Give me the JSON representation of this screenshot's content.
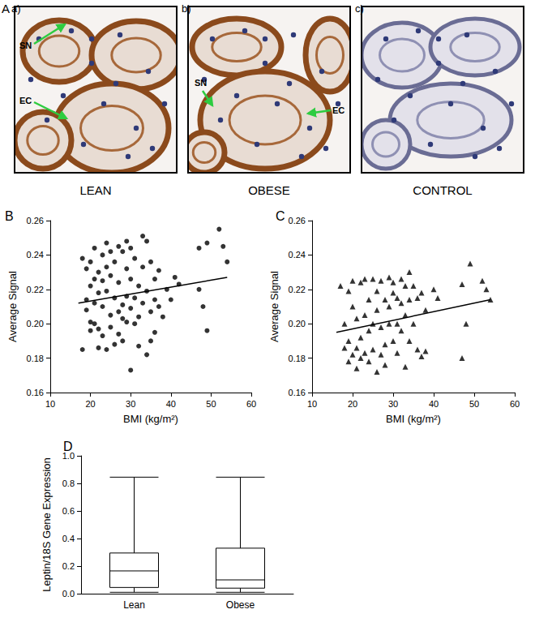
{
  "figure": {
    "panel_A": {
      "label": "A",
      "images": [
        {
          "label": "a)",
          "caption": "LEAN",
          "annotations": [
            "SN",
            "EC"
          ]
        },
        {
          "label": "b)",
          "caption": "OBESE",
          "annotations": [
            "SN",
            "EC"
          ]
        },
        {
          "label": "c)",
          "caption": "CONTROL",
          "annotations": []
        }
      ]
    }
  },
  "chart_data": [
    {
      "type": "scatter",
      "panel_label": "B",
      "x_label": "BMI (kg/m²)",
      "y_label": "Average Signal",
      "xlim": [
        10,
        60
      ],
      "xticks": [
        10,
        20,
        30,
        40,
        50,
        60
      ],
      "ylim": [
        0.16,
        0.26
      ],
      "yticks": [
        0.16,
        0.18,
        {
          "value": 0.2,
          "label": "0.20"
        },
        0.22,
        0.24,
        0.26
      ],
      "grid": false,
      "series": [
        {
          "type": "scatter",
          "marker": "circle",
          "color": "#000000",
          "values": [
            [
              18,
              0.185
            ],
            [
              18,
              0.238
            ],
            [
              19,
              0.232
            ],
            [
              19,
              0.214
            ],
            [
              19,
              0.208
            ],
            [
              20,
              0.236
            ],
            [
              20,
              0.222
            ],
            [
              20,
              0.196
            ],
            [
              20,
              0.201
            ],
            [
              21,
              0.244
            ],
            [
              21,
              0.226
            ],
            [
              21,
              0.212
            ],
            [
              21,
              0.2
            ],
            [
              22,
              0.218
            ],
            [
              22,
              0.197
            ],
            [
              22,
              0.186
            ],
            [
              22,
              0.23
            ],
            [
              23,
              0.24
            ],
            [
              23,
              0.225
            ],
            [
              23,
              0.21
            ],
            [
              23,
              0.193
            ],
            [
              24,
              0.247
            ],
            [
              24,
              0.233
            ],
            [
              24,
              0.185
            ],
            [
              24,
              0.219
            ],
            [
              25,
              0.242
            ],
            [
              25,
              0.205
            ],
            [
              25,
              0.198
            ],
            [
              25,
              0.228
            ],
            [
              26,
              0.215
            ],
            [
              26,
              0.188
            ],
            [
              26,
              0.236
            ],
            [
              27,
              0.207
            ],
            [
              27,
              0.194
            ],
            [
              27,
              0.224
            ],
            [
              27,
              0.245
            ],
            [
              28,
              0.242
            ],
            [
              28,
              0.211
            ],
            [
              28,
              0.203
            ],
            [
              28,
              0.19
            ],
            [
              29,
              0.232
            ],
            [
              29,
              0.216
            ],
            [
              29,
              0.248
            ],
            [
              29,
              0.201
            ],
            [
              30,
              0.244
            ],
            [
              30,
              0.173
            ],
            [
              30,
              0.226
            ],
            [
              30,
              0.209
            ],
            [
              31,
              0.238
            ],
            [
              31,
              0.2
            ],
            [
              31,
              0.215
            ],
            [
              32,
              0.222
            ],
            [
              32,
              0.204
            ],
            [
              32,
              0.187
            ],
            [
              33,
              0.251
            ],
            [
              33,
              0.233
            ],
            [
              33,
              0.212
            ],
            [
              34,
              0.248
            ],
            [
              34,
              0.219
            ],
            [
              34,
              0.182
            ],
            [
              35,
              0.236
            ],
            [
              35,
              0.207
            ],
            [
              35,
              0.19
            ],
            [
              36,
              0.226
            ],
            [
              36,
              0.214
            ],
            [
              36,
              0.195
            ],
            [
              37,
              0.231
            ],
            [
              37,
              0.21
            ],
            [
              38,
              0.204
            ],
            [
              39,
              0.22
            ],
            [
              40,
              0.214
            ],
            [
              41,
              0.227
            ],
            [
              42,
              0.223
            ],
            [
              47,
              0.244
            ],
            [
              47,
              0.22
            ],
            [
              48,
              0.21
            ],
            [
              49,
              0.196
            ],
            [
              49,
              0.247
            ],
            [
              52,
              0.255
            ],
            [
              53,
              0.245
            ],
            [
              54,
              0.236
            ]
          ]
        },
        {
          "type": "line",
          "line_style": "solid",
          "color": "#000000",
          "values": [
            [
              17,
              0.212
            ],
            [
              54,
              0.227
            ]
          ]
        }
      ]
    },
    {
      "type": "scatter",
      "panel_label": "C",
      "x_label": "BMI (kg/m²)",
      "y_label": "Average Signal",
      "xlim": [
        10,
        60
      ],
      "xticks": [
        10,
        20,
        30,
        40,
        50,
        60
      ],
      "ylim": [
        0.16,
        0.26
      ],
      "yticks": [
        0.16,
        0.18,
        {
          "value": 0.2,
          "label": "0.20"
        },
        0.22,
        0.24,
        0.26
      ],
      "grid": false,
      "series": [
        {
          "type": "scatter",
          "marker": "triangle",
          "color": "#000000",
          "values": [
            [
              17,
              0.222
            ],
            [
              18,
              0.2
            ],
            [
              18,
              0.186
            ],
            [
              19,
              0.219
            ],
            [
              19,
              0.19
            ],
            [
              19,
              0.178
            ],
            [
              20,
              0.225
            ],
            [
              20,
              0.21
            ],
            [
              20,
              0.182
            ],
            [
              21,
              0.203
            ],
            [
              21,
              0.186
            ],
            [
              21,
              0.174
            ],
            [
              22,
              0.224
            ],
            [
              22,
              0.192
            ],
            [
              22,
              0.18
            ],
            [
              23,
              0.226
            ],
            [
              23,
              0.205
            ],
            [
              23,
              0.183
            ],
            [
              24,
              0.214
            ],
            [
              24,
              0.196
            ],
            [
              24,
              0.178
            ],
            [
              25,
              0.226
            ],
            [
              25,
              0.2
            ],
            [
              25,
              0.185
            ],
            [
              26,
              0.219
            ],
            [
              26,
              0.208
            ],
            [
              26,
              0.172
            ],
            [
              27,
              0.225
            ],
            [
              27,
              0.198
            ],
            [
              27,
              0.182
            ],
            [
              28,
              0.214
            ],
            [
              28,
              0.188
            ],
            [
              28,
              0.176
            ],
            [
              29,
              0.227
            ],
            [
              29,
              0.21
            ],
            [
              29,
              0.2
            ],
            [
              30,
              0.224
            ],
            [
              30,
              0.218
            ],
            [
              30,
              0.19
            ],
            [
              31,
              0.215
            ],
            [
              31,
              0.2
            ],
            [
              31,
              0.183
            ],
            [
              32,
              0.226
            ],
            [
              32,
              0.212
            ],
            [
              32,
              0.196
            ],
            [
              33,
              0.222
            ],
            [
              33,
              0.205
            ],
            [
              33,
              0.175
            ],
            [
              34,
              0.23
            ],
            [
              34,
              0.214
            ],
            [
              34,
              0.19
            ],
            [
              35,
              0.222
            ],
            [
              35,
              0.2
            ],
            [
              36,
              0.215
            ],
            [
              36,
              0.185
            ],
            [
              37,
              0.218
            ],
            [
              37,
              0.181
            ],
            [
              38,
              0.184
            ],
            [
              38,
              0.208
            ],
            [
              40,
              0.22
            ],
            [
              41,
              0.215
            ],
            [
              47,
              0.223
            ],
            [
              47,
              0.18
            ],
            [
              48,
              0.2
            ],
            [
              49,
              0.235
            ],
            [
              52,
              0.225
            ],
            [
              53,
              0.22
            ],
            [
              54,
              0.214
            ]
          ]
        },
        {
          "type": "line",
          "line_style": "solid",
          "color": "#000000",
          "values": [
            [
              16,
              0.195
            ],
            [
              54,
              0.214
            ]
          ]
        }
      ]
    },
    {
      "type": "boxplot",
      "panel_label": "D",
      "y_label": "Leptin/18S Gene Expression",
      "categories": [
        "Lean",
        "Obese"
      ],
      "ylim": [
        0,
        1
      ],
      "yticks": [
        {
          "value": 0,
          "label": "0.0"
        },
        0.2,
        0.4,
        0.6,
        0.8,
        {
          "value": 1,
          "label": "1.0"
        }
      ],
      "grid": false,
      "color": "#000000",
      "values": [
        [
          0.01,
          0.045,
          0.165,
          0.295,
          0.845
        ],
        [
          0.01,
          0.04,
          0.1,
          0.33,
          0.845
        ]
      ]
    }
  ]
}
